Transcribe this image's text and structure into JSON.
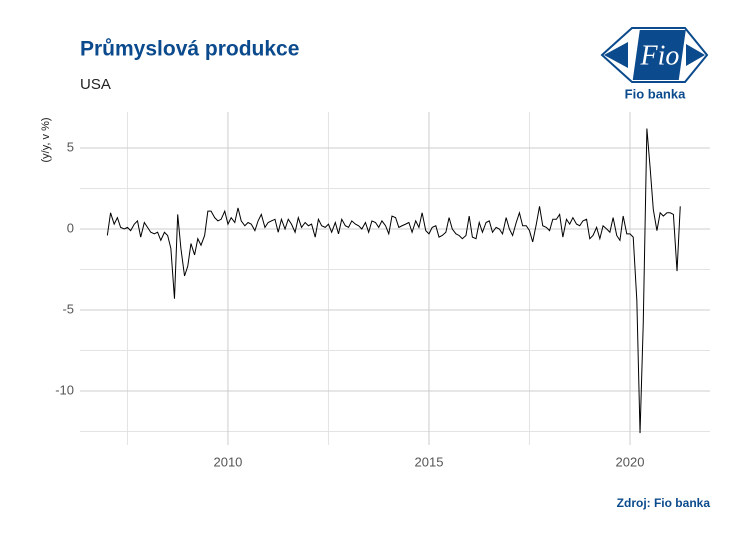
{
  "chart_data": {
    "type": "line",
    "title": "Průmyslová produkce",
    "subtitle": "USA",
    "y_label": "(y/y, v %)",
    "source": "Zdroj: Fio banka",
    "logo": {
      "mark": "Fio",
      "name": "Fio banka"
    },
    "color": "#000000",
    "grid": true,
    "xlim": [
      2006.32,
      2021.99
    ],
    "ylim": [
      -13.33,
      7.22
    ],
    "xticks": [
      2010,
      2015,
      2020
    ],
    "yticks": [
      -10,
      -5,
      0,
      5
    ],
    "minor_xticks": [
      2007.5,
      2012.5,
      2017.5
    ],
    "minor_yticks": [
      -12.5,
      -7.5,
      -2.5,
      2.5
    ],
    "x": [
      2007.0,
      2007.08,
      2007.17,
      2007.25,
      2007.33,
      2007.42,
      2007.5,
      2007.58,
      2007.67,
      2007.75,
      2007.83,
      2007.92,
      2008.0,
      2008.08,
      2008.17,
      2008.25,
      2008.33,
      2008.42,
      2008.5,
      2008.58,
      2008.67,
      2008.75,
      2008.83,
      2008.92,
      2009.0,
      2009.08,
      2009.17,
      2009.25,
      2009.33,
      2009.42,
      2009.5,
      2009.58,
      2009.67,
      2009.75,
      2009.83,
      2009.92,
      2010.0,
      2010.08,
      2010.17,
      2010.25,
      2010.33,
      2010.42,
      2010.5,
      2010.58,
      2010.67,
      2010.75,
      2010.83,
      2010.92,
      2011.0,
      2011.08,
      2011.17,
      2011.25,
      2011.33,
      2011.42,
      2011.5,
      2011.58,
      2011.67,
      2011.75,
      2011.83,
      2011.92,
      2012.0,
      2012.08,
      2012.17,
      2012.25,
      2012.33,
      2012.42,
      2012.5,
      2012.58,
      2012.67,
      2012.75,
      2012.83,
      2012.92,
      2013.0,
      2013.08,
      2013.17,
      2013.25,
      2013.33,
      2013.42,
      2013.5,
      2013.58,
      2013.67,
      2013.75,
      2013.83,
      2013.92,
      2014.0,
      2014.08,
      2014.17,
      2014.25,
      2014.33,
      2014.42,
      2014.5,
      2014.58,
      2014.67,
      2014.75,
      2014.83,
      2014.92,
      2015.0,
      2015.08,
      2015.17,
      2015.25,
      2015.33,
      2015.42,
      2015.5,
      2015.58,
      2015.67,
      2015.75,
      2015.83,
      2015.92,
      2016.0,
      2016.08,
      2016.17,
      2016.25,
      2016.33,
      2016.42,
      2016.5,
      2016.58,
      2016.67,
      2016.75,
      2016.83,
      2016.92,
      2017.0,
      2017.08,
      2017.17,
      2017.25,
      2017.33,
      2017.42,
      2017.5,
      2017.58,
      2017.67,
      2017.75,
      2017.83,
      2017.92,
      2018.0,
      2018.08,
      2018.17,
      2018.25,
      2018.33,
      2018.42,
      2018.5,
      2018.58,
      2018.67,
      2018.75,
      2018.83,
      2018.92,
      2019.0,
      2019.08,
      2019.17,
      2019.25,
      2019.33,
      2019.42,
      2019.5,
      2019.58,
      2019.67,
      2019.75,
      2019.83,
      2019.92,
      2020.0,
      2020.08,
      2020.17,
      2020.25,
      2020.33,
      2020.42,
      2020.5,
      2020.58,
      2020.67,
      2020.75,
      2020.83,
      2020.92,
      2021.0,
      2021.08,
      2021.17,
      2021.25
    ],
    "values": [
      -0.4,
      1.0,
      0.3,
      0.7,
      0.1,
      0.0,
      0.1,
      -0.1,
      0.3,
      0.5,
      -0.5,
      0.4,
      0.1,
      -0.2,
      -0.3,
      -0.2,
      -0.7,
      -0.2,
      -0.4,
      -1.2,
      -4.3,
      0.9,
      -1.2,
      -2.9,
      -2.3,
      -0.9,
      -1.6,
      -0.6,
      -1.0,
      -0.4,
      1.1,
      1.1,
      0.7,
      0.5,
      0.6,
      1.1,
      0.3,
      0.7,
      0.4,
      1.3,
      0.5,
      0.2,
      0.4,
      0.3,
      -0.1,
      0.5,
      0.9,
      0.1,
      0.4,
      0.5,
      0.6,
      -0.2,
      0.6,
      0.0,
      0.6,
      0.3,
      -0.2,
      0.7,
      0.1,
      0.4,
      0.2,
      0.3,
      -0.5,
      0.6,
      0.2,
      0.1,
      0.3,
      -0.2,
      0.4,
      -0.3,
      0.6,
      0.2,
      0.1,
      0.5,
      0.3,
      0.2,
      0.0,
      0.4,
      -0.2,
      0.5,
      0.4,
      0.1,
      0.5,
      0.2,
      -0.3,
      0.8,
      0.7,
      0.1,
      0.2,
      0.3,
      0.4,
      -0.2,
      0.5,
      0.1,
      1.0,
      -0.1,
      -0.3,
      0.1,
      0.2,
      -0.5,
      -0.4,
      -0.2,
      0.7,
      0.0,
      -0.3,
      -0.4,
      -0.6,
      -0.4,
      0.8,
      -0.5,
      -0.6,
      0.4,
      -0.2,
      0.4,
      0.5,
      -0.2,
      0.1,
      0.0,
      -0.3,
      0.7,
      0.0,
      -0.4,
      0.4,
      1.0,
      0.2,
      0.2,
      -0.1,
      -0.8,
      0.3,
      1.4,
      0.2,
      0.1,
      -0.1,
      0.6,
      0.6,
      0.9,
      -0.5,
      0.6,
      0.3,
      0.7,
      0.3,
      0.2,
      0.5,
      0.6,
      -0.6,
      -0.4,
      0.1,
      -0.6,
      0.2,
      0.0,
      -0.2,
      0.7,
      -0.4,
      -0.7,
      0.8,
      -0.3,
      -0.3,
      -0.5,
      -4.4,
      -12.6,
      -5.8,
      6.2,
      3.8,
      1.2,
      -0.1,
      1.0,
      0.8,
      1.0,
      1.0,
      0.9,
      -2.6,
      1.4
    ]
  }
}
